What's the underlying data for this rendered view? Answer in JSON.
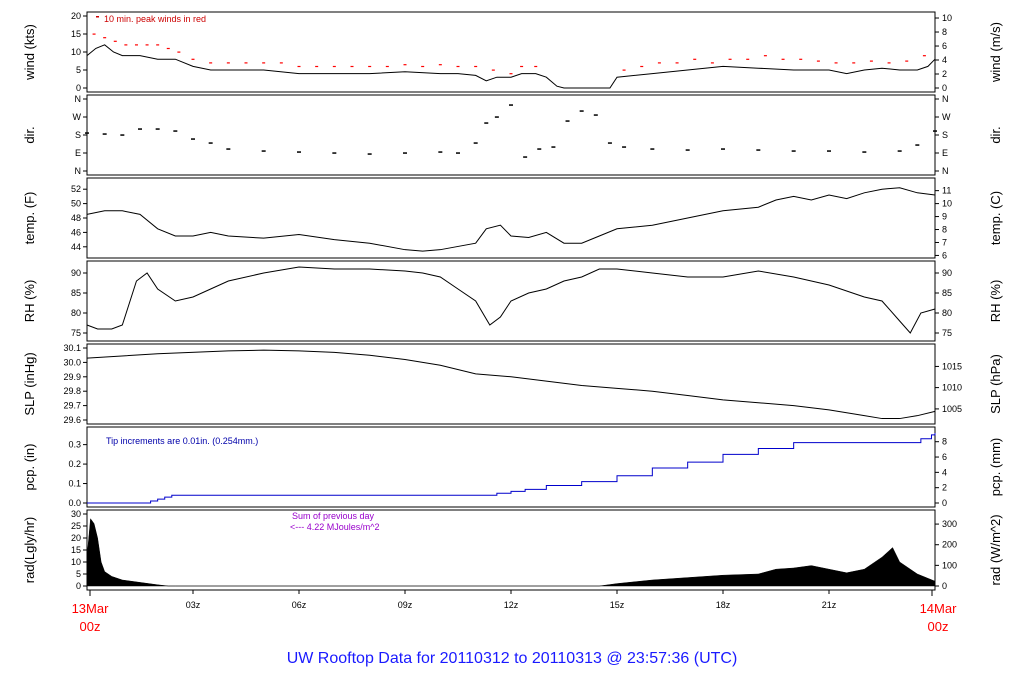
{
  "footer_title": "UW Rooftop Data for 20110312  to  20110313 @ 23:57:36  (UTC)",
  "colors": {
    "red": "#ff0000",
    "blue": "#0000cc",
    "purple": "#9900cc",
    "black": "#000000"
  },
  "chart_data": {
    "type": "line",
    "x_start_label": [
      "13Mar",
      "00z"
    ],
    "x_end_label": [
      "14Mar",
      "00z"
    ],
    "x_ticks": [
      "03z",
      "06z",
      "09z",
      "12z",
      "15z",
      "18z",
      "21z"
    ],
    "x_tick_hours": [
      3,
      6,
      9,
      12,
      15,
      18,
      21
    ],
    "x_range_hours": [
      0,
      24
    ],
    "panels": [
      {
        "key": "wind",
        "left_label": "wind (kts)",
        "right_label": "wind (m/s)",
        "ylim": [
          0,
          20
        ],
        "left_ticks": [
          0,
          5,
          10,
          15,
          20
        ],
        "right_ticks": [
          "0",
          "2",
          "4",
          "6",
          "8",
          "10"
        ],
        "right_tick_vals": [
          0,
          3.89,
          7.78,
          11.66,
          15.55,
          19.44
        ],
        "annotation": "10 min. peak winds in red",
        "series": [
          {
            "name": "wind speed",
            "style": "line",
            "color": "#000000",
            "x": [
              0,
              0.25,
              0.5,
              0.75,
              1,
              1.5,
              2,
              2.5,
              3,
              3.5,
              4,
              5,
              6,
              7,
              8,
              9,
              10,
              10.5,
              11,
              11.3,
              11.6,
              12,
              12.3,
              12.7,
              13,
              13.3,
              13.5,
              14,
              14.5,
              14.8,
              15,
              16,
              17,
              18,
              19,
              20,
              21,
              21.5,
              22,
              22.5,
              23,
              23.5,
              23.8,
              24
            ],
            "y": [
              9,
              11,
              12,
              10,
              9,
              9,
              8,
              8,
              6,
              5,
              5,
              5,
              4,
              4,
              4,
              4.5,
              4,
              4,
              3.5,
              2,
              3,
              3,
              4,
              4,
              3,
              0.5,
              0,
              0,
              0,
              0,
              3,
              4,
              5,
              6,
              5.5,
              5,
              5,
              4,
              5,
              5.5,
              5,
              5,
              6,
              8
            ]
          },
          {
            "name": "10 min peak",
            "style": "dots",
            "color": "#ff0000",
            "x": [
              0.2,
              0.5,
              0.8,
              1.1,
              1.4,
              1.7,
              2,
              2.3,
              2.6,
              3,
              3.5,
              4,
              4.5,
              5,
              5.5,
              6,
              6.5,
              7,
              7.5,
              8,
              8.5,
              9,
              9.5,
              10,
              10.5,
              11,
              11.5,
              12,
              12.3,
              12.7,
              15.2,
              15.7,
              16.2,
              16.7,
              17.2,
              17.7,
              18.2,
              18.7,
              19.2,
              19.7,
              20.2,
              20.7,
              21.2,
              21.7,
              22.2,
              22.7,
              23.2,
              23.7
            ],
            "y": [
              15,
              14,
              13,
              12,
              12,
              12,
              12,
              11,
              10,
              8,
              7,
              7,
              7,
              7,
              7,
              6,
              6,
              6,
              6,
              6,
              6,
              6.5,
              6,
              6.5,
              6,
              6,
              5,
              4,
              6,
              6,
              5,
              6,
              7,
              7,
              8,
              7,
              8,
              8,
              9,
              8,
              8,
              7.5,
              7,
              7,
              7.5,
              7,
              7.5,
              9
            ]
          }
        ]
      },
      {
        "key": "dir",
        "left_label": "dir.",
        "right_label": "dir.",
        "ylim": [
          0,
          360
        ],
        "left_ticks": [
          "N",
          "E",
          "S",
          "W",
          "N"
        ],
        "tick_vals": [
          0,
          90,
          180,
          270,
          360
        ],
        "right_ticks": [
          "N",
          "E",
          "S",
          "W",
          "N"
        ],
        "series": [
          {
            "name": "wind direction",
            "style": "scatter",
            "color": "#000000",
            "x": [
              0,
              0.5,
              1,
              1.5,
              2,
              2.5,
              3,
              3.5,
              4,
              5,
              6,
              7,
              8,
              9,
              10,
              10.5,
              11,
              11.3,
              11.6,
              12,
              12.4,
              12.8,
              13.2,
              13.6,
              14,
              14.4,
              14.8,
              15.2,
              16,
              17,
              18,
              19,
              20,
              21,
              22,
              23,
              23.5,
              24
            ],
            "y": [
              190,
              185,
              180,
              210,
              210,
              200,
              160,
              140,
              110,
              100,
              95,
              90,
              85,
              90,
              95,
              90,
              140,
              240,
              270,
              330,
              70,
              110,
              120,
              250,
              300,
              280,
              140,
              120,
              110,
              105,
              110,
              105,
              100,
              100,
              95,
              100,
              130,
              200
            ]
          }
        ]
      },
      {
        "key": "temp",
        "left_label": "temp. (F)",
        "right_label": "temp. (C)",
        "ylim": [
          43,
          53
        ],
        "left_ticks": [
          44,
          46,
          48,
          50,
          52
        ],
        "right_ticks": [
          "6",
          "7",
          "8",
          "9",
          "10",
          "11"
        ],
        "right_tick_vals": [
          42.8,
          44.6,
          46.4,
          48.2,
          50,
          51.8
        ],
        "series": [
          {
            "name": "temperature",
            "style": "line",
            "color": "#000000",
            "x": [
              0,
              0.5,
              1,
              1.5,
              2,
              2.5,
              3,
              3.5,
              4,
              5,
              6,
              7,
              8,
              9,
              9.5,
              10,
              11,
              11.3,
              11.7,
              12,
              12.5,
              13,
              13.5,
              14,
              14.5,
              15,
              16,
              17,
              18,
              19,
              19.5,
              20,
              20.5,
              21,
              21.5,
              22,
              22.5,
              23,
              23.5,
              24
            ],
            "y": [
              48.5,
              49,
              49,
              48.5,
              46.5,
              45.5,
              45.5,
              46,
              45.5,
              45.2,
              45.7,
              45,
              44.5,
              43.6,
              43.4,
              43.6,
              44.5,
              46.5,
              47,
              45.5,
              45.3,
              46,
              44.5,
              44.5,
              45.5,
              46.5,
              47,
              48,
              49,
              49.5,
              50.5,
              51,
              50.5,
              51.2,
              50.7,
              51.5,
              52,
              52.2,
              51.5,
              51.2
            ]
          }
        ]
      },
      {
        "key": "rh",
        "left_label": "RH (%)",
        "right_label": "RH (%)",
        "ylim": [
          74,
          92
        ],
        "left_ticks": [
          75,
          80,
          85,
          90
        ],
        "right_ticks": [
          "75",
          "80",
          "85",
          "90"
        ],
        "right_tick_vals": [
          75,
          80,
          85,
          90
        ],
        "series": [
          {
            "name": "relative humidity",
            "style": "line",
            "color": "#000000",
            "x": [
              0,
              0.3,
              0.7,
              1,
              1.4,
              1.7,
              2,
              2.5,
              3,
              3.5,
              4,
              5,
              6,
              7,
              8,
              9,
              9.5,
              10,
              10.5,
              11,
              11.4,
              11.7,
              12,
              12.5,
              13,
              13.5,
              14,
              14.5,
              15,
              16,
              17,
              18,
              19,
              20,
              21,
              22,
              22.5,
              23,
              23.3,
              23.6,
              24
            ],
            "y": [
              77,
              76,
              76,
              77,
              88,
              90,
              86,
              83,
              84,
              86,
              88,
              90,
              91.5,
              91,
              91,
              90.5,
              90,
              89,
              86,
              83,
              77,
              79,
              83,
              85,
              86,
              88,
              89,
              91,
              91,
              90,
              89,
              89,
              90.5,
              89,
              87,
              84,
              83,
              78,
              75,
              80,
              81
            ]
          }
        ]
      },
      {
        "key": "slp",
        "left_label": "SLP (inHg)",
        "right_label": "SLP (hPa)",
        "ylim": [
          29.6,
          30.1
        ],
        "left_ticks": [
          29.6,
          29.7,
          29.8,
          29.9,
          30.0,
          30.1
        ],
        "right_ticks": [
          "1005",
          "1010",
          "1015"
        ],
        "right_tick_vals": [
          29.677,
          29.825,
          29.972
        ],
        "series": [
          {
            "name": "sea level pressure",
            "style": "line",
            "color": "#000000",
            "x": [
              0,
              2,
              4,
              5,
              6,
              7,
              8,
              9,
              10,
              11,
              12,
              13,
              14,
              15,
              16,
              17,
              18,
              19,
              20,
              21,
              22,
              22.5,
              23,
              23.5,
              24
            ],
            "y": [
              30.03,
              30.06,
              30.08,
              30.085,
              30.08,
              30.07,
              30.05,
              30.02,
              29.98,
              29.92,
              29.9,
              29.87,
              29.84,
              29.82,
              29.8,
              29.77,
              29.74,
              29.72,
              29.7,
              29.67,
              29.63,
              29.61,
              29.61,
              29.63,
              29.66
            ]
          }
        ]
      },
      {
        "key": "pcp",
        "left_label": "pcp. (in)",
        "right_label": "pcp. (mm)",
        "ylim": [
          0,
          0.37
        ],
        "left_ticks": [
          0.0,
          0.1,
          0.2,
          0.3
        ],
        "right_ticks": [
          "0",
          "2",
          "4",
          "6",
          "8"
        ],
        "right_tick_vals": [
          0,
          0.0787,
          0.1575,
          0.2362,
          0.315
        ],
        "annotation": "Tip increments are 0.01in. (0.254mm.)",
        "series": [
          {
            "name": "accumulated precipitation",
            "style": "step",
            "color": "#0000cc",
            "x": [
              0,
              1.8,
              2.0,
              2.2,
              2.4,
              11.3,
              11.6,
              12,
              12.4,
              13,
              14,
              15,
              16,
              17,
              18,
              19,
              20,
              23.3,
              23.6,
              23.9,
              24
            ],
            "y": [
              0,
              0.01,
              0.02,
              0.03,
              0.04,
              0.04,
              0.05,
              0.06,
              0.07,
              0.09,
              0.11,
              0.14,
              0.18,
              0.21,
              0.25,
              0.28,
              0.31,
              0.31,
              0.33,
              0.35,
              0.36
            ]
          }
        ]
      },
      {
        "key": "rad",
        "left_label": "rad(Lgly/hr)",
        "right_label": "rad (W/m^2)",
        "ylim": [
          0,
          30
        ],
        "left_ticks": [
          0,
          5,
          10,
          15,
          20,
          25,
          30
        ],
        "right_ticks": [
          "0",
          "100",
          "200",
          "300"
        ],
        "right_tick_vals": [
          0,
          8.6,
          17.2,
          25.8
        ],
        "annotation": "Sum of previous day",
        "annotation2": "<--- 4.22 MJoules/m^2",
        "series": [
          {
            "name": "solar radiation",
            "style": "area",
            "color": "#000000",
            "x": [
              0,
              0.1,
              0.2,
              0.3,
              0.4,
              0.5,
              0.7,
              1,
              1.5,
              2,
              2.3,
              2.5,
              14.5,
              15,
              16,
              17,
              18,
              19,
              19.5,
              20,
              20.5,
              21,
              21.5,
              22,
              22.5,
              22.8,
              23,
              23.5,
              24
            ],
            "y": [
              12,
              28,
              26,
              20,
              10,
              6,
              4,
              2.5,
              1.5,
              0.5,
              0,
              0,
              0,
              1,
              2.5,
              3.5,
              4.5,
              5,
              7,
              7.5,
              8.5,
              7,
              5.5,
              7,
              12,
              16,
              10,
              5,
              2
            ]
          }
        ]
      }
    ]
  }
}
